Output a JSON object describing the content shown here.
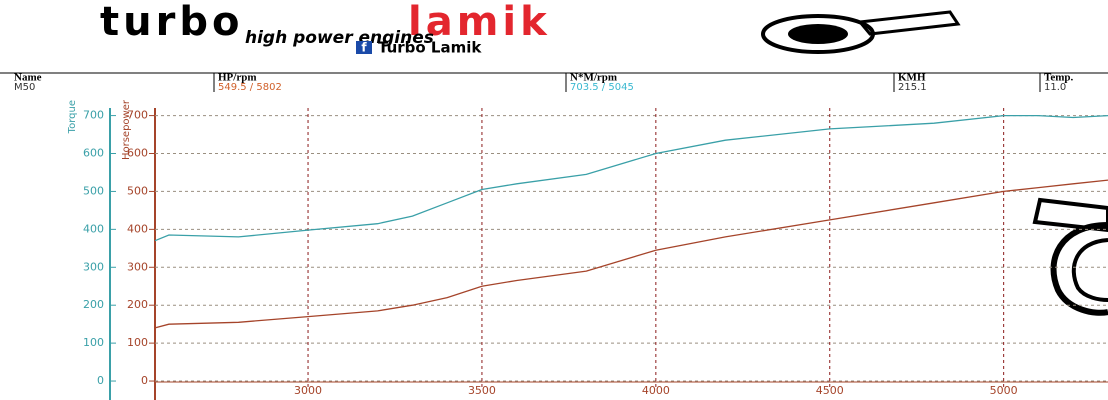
{
  "header": {
    "brand_a": "turbo",
    "brand_b": "lamik",
    "tagline": "high power engines",
    "facebook_icon": "f",
    "facebook_name": "Turbo Lamik"
  },
  "table": {
    "columns": [
      "Name",
      "HP/rpm",
      "N*M/rpm",
      "KMH",
      "Temp."
    ],
    "rows": [
      [
        "M50",
        "549.5 / 5802",
        "703.5 / 5045",
        "215.1",
        "11.0"
      ]
    ]
  },
  "chart_data": {
    "type": "line",
    "ylabel": "Torque",
    "y2label": "Horsepower",
    "x": [
      2560,
      2600,
      2800,
      3000,
      3200,
      3300,
      3400,
      3500,
      3600,
      3800,
      4000,
      4200,
      4500,
      4800,
      5000,
      5100,
      5200,
      5300
    ],
    "series": [
      {
        "name": "Torque",
        "color": "#3aa0a8",
        "values": [
          370,
          385,
          380,
          398,
          415,
          435,
          470,
          505,
          520,
          545,
          600,
          635,
          665,
          680,
          700,
          700,
          695,
          700
        ]
      },
      {
        "name": "Horsepower",
        "color": "#a5442a",
        "axis": "y2",
        "values": [
          140,
          150,
          155,
          170,
          185,
          200,
          220,
          250,
          265,
          290,
          345,
          380,
          425,
          470,
          500,
          510,
          520,
          530
        ]
      }
    ],
    "xlim": [
      2560,
      5300
    ],
    "xticks": [
      3000,
      3500,
      4000,
      4500,
      5000
    ],
    "ylim": [
      -50,
      720
    ],
    "yticks": [
      0,
      100,
      200,
      300,
      400,
      500,
      600,
      700
    ],
    "y2lim": [
      -50,
      720
    ],
    "y2ticks": [
      0,
      100,
      200,
      300,
      400,
      500,
      600,
      700
    ],
    "grid": true
  }
}
